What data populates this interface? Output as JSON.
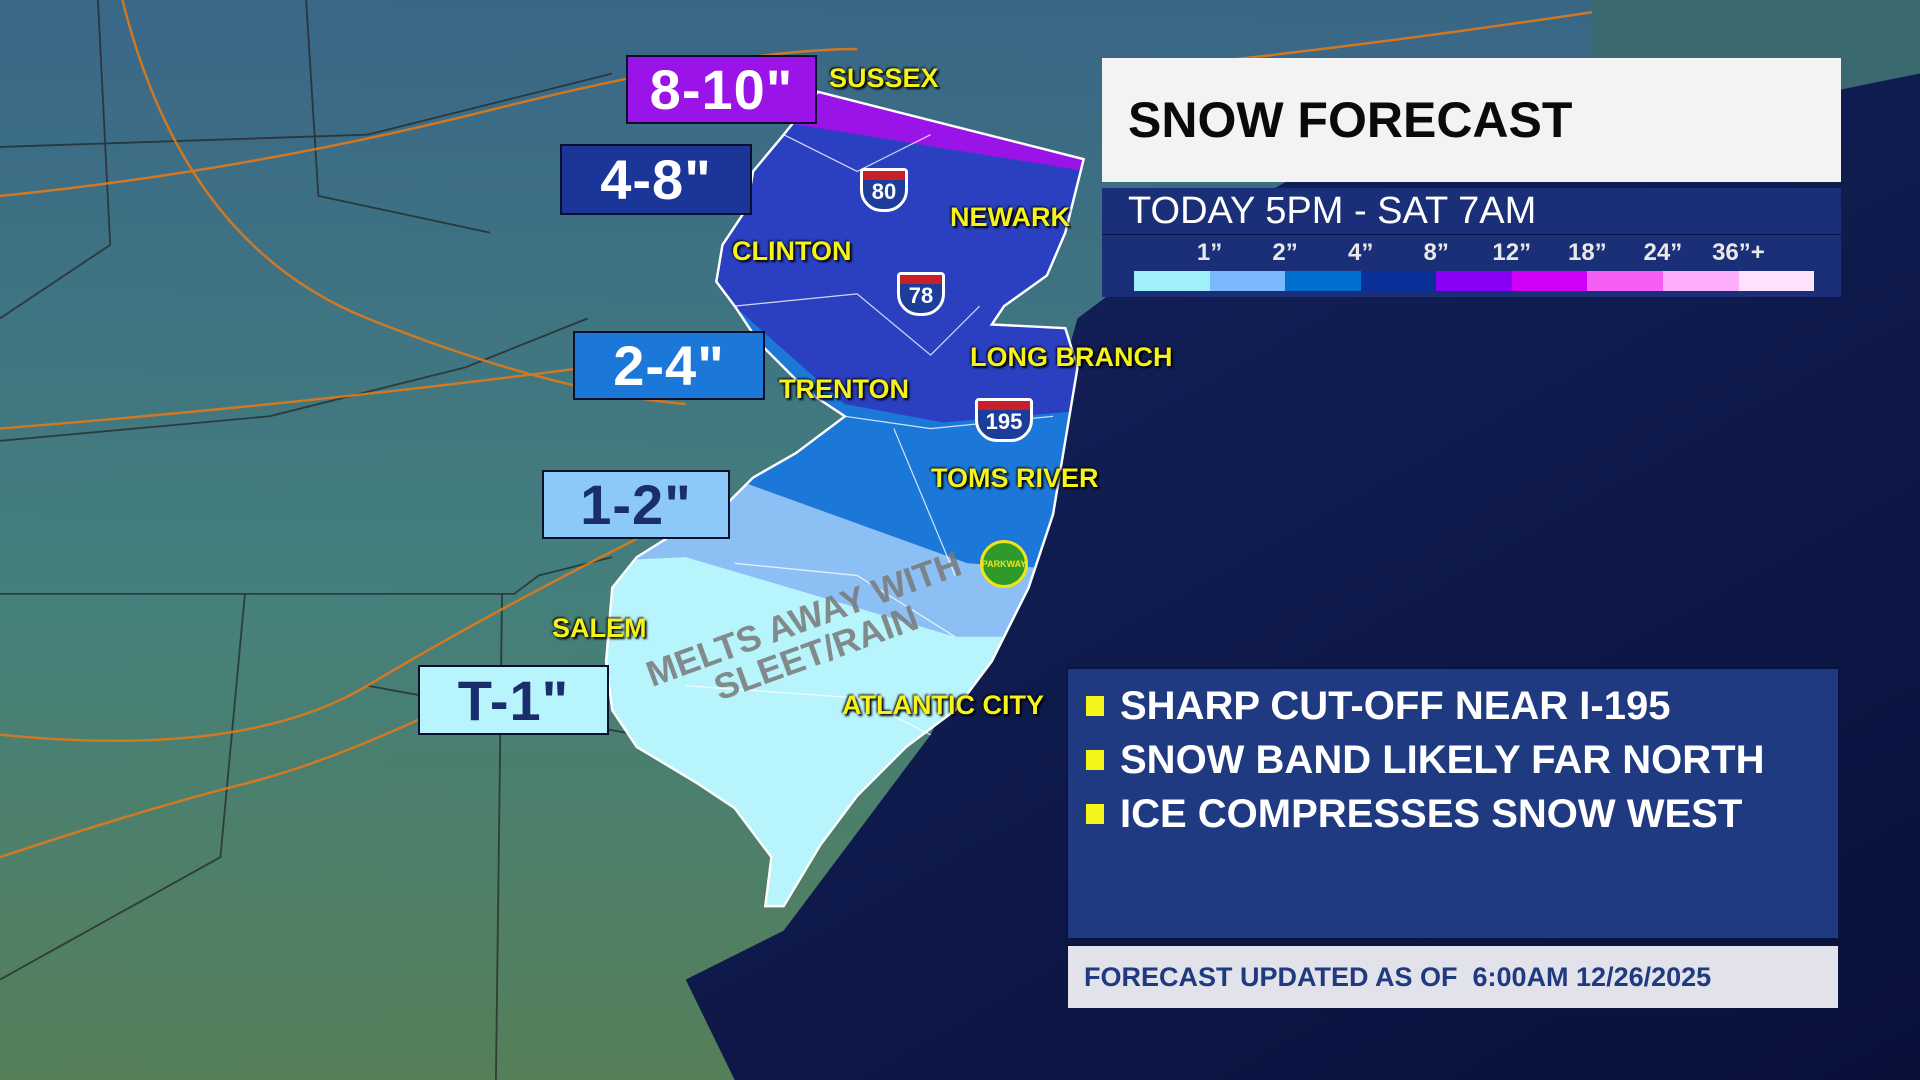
{
  "title": "SNOW FORECAST",
  "timeframe": "TODAY 5PM - SAT 7AM",
  "legend": {
    "ticks": [
      "1”",
      "2”",
      "4”",
      "8”",
      "12”",
      "18”",
      "24”",
      "36”+"
    ],
    "colors": [
      "#a0f0fb",
      "#78b8fb",
      "#0070d0",
      "#0a309a",
      "#8a00f5",
      "#d000f8",
      "#f45ef2",
      "#fcaefc",
      "#fee2fd"
    ]
  },
  "accumulations": [
    {
      "label": "8-10\"",
      "color": "#9a14e8",
      "text_color": "#ffffff"
    },
    {
      "label": "4-8\"",
      "color": "#1a3698",
      "text_color": "#ffffff"
    },
    {
      "label": "2-4\"",
      "color": "#1c78d8",
      "text_color": "#ffffff"
    },
    {
      "label": "1-2\"",
      "color": "#8cc8f8",
      "text_color": "#1a2e6e"
    },
    {
      "label": "T-1\"",
      "color": "#b8f4fb",
      "text_color": "#1a2e6e"
    }
  ],
  "places": [
    "SUSSEX",
    "NEWARK",
    "CLINTON",
    "LONG BRANCH",
    "TRENTON",
    "TOMS RIVER",
    "SALEM",
    "ATLANTIC CITY"
  ],
  "highways": [
    "80",
    "78",
    "195"
  ],
  "parkway_label": "PARKWAY",
  "map_note": "MELTS AWAY WITH SLEET/RAIN",
  "notes": [
    "SHARP CUT-OFF NEAR I-195",
    "SNOW BAND LIKELY FAR NORTH",
    "ICE COMPRESSES SNOW WEST"
  ],
  "footer": "FORECAST UPDATED AS OF  6:00AM 12/26/2025"
}
